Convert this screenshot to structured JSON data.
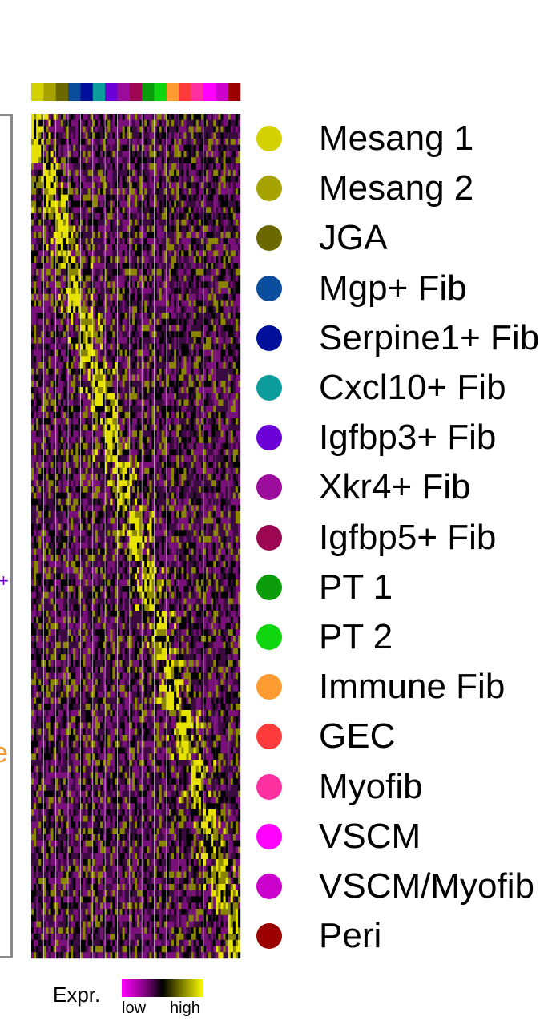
{
  "chart_data": {
    "type": "heatmap",
    "title": "",
    "xlabel": "",
    "ylabel": "",
    "clusters": [
      {
        "name": "Mesang 1",
        "color": "#d4d100"
      },
      {
        "name": "Mesang 2",
        "color": "#a6a200"
      },
      {
        "name": "JGA",
        "color": "#6b6800"
      },
      {
        "name": "Mgp+ Fib",
        "color": "#0a4d9c"
      },
      {
        "name": "Serpine1+ Fib",
        "color": "#00109a"
      },
      {
        "name": "Cxcl10+ Fib",
        "color": "#0d9c9c"
      },
      {
        "name": "Igfbp3+ Fib",
        "color": "#6a00d6"
      },
      {
        "name": "Xkr4+ Fib",
        "color": "#9c0c9c"
      },
      {
        "name": "Igfbp5+ Fib",
        "color": "#9c0652"
      },
      {
        "name": "PT 1",
        "color": "#0c9c0c"
      },
      {
        "name": "PT 2",
        "color": "#0fd60f"
      },
      {
        "name": "Immune Fib",
        "color": "#ff9b30"
      },
      {
        "name": "GEC",
        "color": "#ff3a3a"
      },
      {
        "name": "Myofib",
        "color": "#ff30a0"
      },
      {
        "name": "VSCM",
        "color": "#ff00ff"
      },
      {
        "name": "VSCM/Myofib",
        "color": "#cc00cc"
      },
      {
        "name": "Peri",
        "color": "#9c0000"
      }
    ],
    "colorscale": {
      "label": "Expr.",
      "low_label": "low",
      "high_label": "high",
      "colors": [
        "#ff00ff",
        "#000000",
        "#ffff00"
      ]
    },
    "legend_position": "right"
  },
  "edge_glyphs": {
    "plus": "+",
    "e": "e"
  }
}
